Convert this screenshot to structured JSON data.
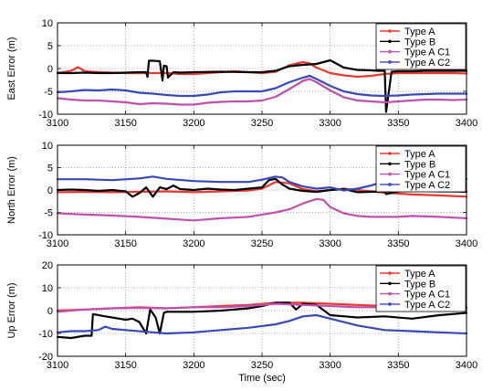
{
  "chart_data": [
    {
      "type": "line",
      "ylabel": "East Error (m)",
      "xlabel": "",
      "xlim": [
        3100,
        3400
      ],
      "ylim": [
        -10,
        10
      ],
      "xticks": [
        "3100",
        "3150",
        "3200",
        "3250",
        "3300",
        "3350",
        "3400"
      ],
      "yticks": [
        "-10",
        "-5",
        "0",
        "5",
        "10"
      ],
      "grid": "dotted",
      "legend_position": "top-right",
      "series": [
        {
          "name": "Type A",
          "color": "#e8382f",
          "x": [
            3100,
            3110,
            3115,
            3120,
            3130,
            3140,
            3150,
            3160,
            3165,
            3170,
            3180,
            3190,
            3200,
            3210,
            3220,
            3230,
            3240,
            3250,
            3260,
            3270,
            3280,
            3285,
            3290,
            3300,
            3310,
            3320,
            3330,
            3340,
            3350,
            3360,
            3370,
            3380,
            3390,
            3400
          ],
          "y": [
            -1.0,
            -0.5,
            0.3,
            -0.6,
            -0.8,
            -0.9,
            -1.0,
            -1.0,
            -1.0,
            -1.0,
            -1.0,
            -1.2,
            -1.2,
            -1.0,
            -0.8,
            -0.6,
            -0.8,
            -1.0,
            -0.7,
            0.7,
            1.4,
            1.1,
            0.2,
            -1.0,
            -1.5,
            -1.8,
            -1.6,
            -1.2,
            -1.0,
            -1.0,
            -1.0,
            -1.0,
            -1.0,
            -1.1
          ]
        },
        {
          "name": "Type B",
          "color": "#000000",
          "x": [
            3100,
            3110,
            3120,
            3130,
            3140,
            3150,
            3160,
            3165,
            3166,
            3167,
            3170,
            3175,
            3177,
            3178,
            3180,
            3181,
            3185,
            3190,
            3200,
            3220,
            3240,
            3250,
            3260,
            3270,
            3280,
            3290,
            3300,
            3310,
            3320,
            3330,
            3335,
            3340,
            3341,
            3345,
            3350,
            3360,
            3370,
            3380,
            3390,
            3400
          ],
          "y": [
            -1.0,
            -1.0,
            -0.9,
            -1.0,
            -1.0,
            -0.9,
            -0.8,
            -0.8,
            -1.8,
            1.7,
            1.7,
            1.6,
            -2.6,
            0.6,
            0.5,
            -2.0,
            -0.8,
            -0.9,
            -0.8,
            -0.7,
            -0.8,
            -0.8,
            -0.5,
            0.5,
            0.8,
            1.0,
            1.8,
            0.2,
            -0.3,
            -0.4,
            -0.5,
            -0.5,
            -9.5,
            -0.7,
            -0.6,
            -0.6,
            -0.5,
            -0.5,
            -0.5,
            -0.5
          ]
        },
        {
          "name": "Type A C1",
          "color": "#c050b0",
          "x": [
            3100,
            3110,
            3120,
            3130,
            3140,
            3150,
            3160,
            3170,
            3180,
            3190,
            3200,
            3210,
            3220,
            3230,
            3240,
            3250,
            3260,
            3270,
            3280,
            3285,
            3290,
            3300,
            3310,
            3320,
            3330,
            3340,
            3350,
            3360,
            3370,
            3380,
            3390,
            3400
          ],
          "y": [
            -6.5,
            -6.8,
            -7.0,
            -7.0,
            -7.2,
            -7.4,
            -7.8,
            -7.6,
            -7.7,
            -7.9,
            -7.9,
            -7.5,
            -7.3,
            -7.2,
            -7.2,
            -7.0,
            -6.2,
            -4.5,
            -2.7,
            -2.3,
            -3.0,
            -4.8,
            -6.3,
            -7.0,
            -7.2,
            -7.4,
            -7.2,
            -7.0,
            -6.8,
            -6.8,
            -6.9,
            -6.8
          ]
        },
        {
          "name": "Type A C2",
          "color": "#3848b8",
          "x": [
            3100,
            3110,
            3120,
            3130,
            3140,
            3150,
            3160,
            3170,
            3180,
            3190,
            3200,
            3210,
            3220,
            3230,
            3240,
            3250,
            3260,
            3270,
            3280,
            3285,
            3290,
            3300,
            3310,
            3320,
            3330,
            3340,
            3350,
            3360,
            3370,
            3380,
            3390,
            3400
          ],
          "y": [
            -5.2,
            -5.0,
            -4.7,
            -4.8,
            -4.6,
            -4.8,
            -5.3,
            -5.5,
            -5.8,
            -6.0,
            -6.0,
            -5.7,
            -5.2,
            -5.0,
            -5.0,
            -5.0,
            -4.3,
            -3.0,
            -2.0,
            -1.6,
            -2.3,
            -3.8,
            -5.0,
            -5.6,
            -5.9,
            -6.0,
            -5.9,
            -5.7,
            -5.6,
            -5.5,
            -5.5,
            -5.5
          ]
        }
      ]
    },
    {
      "type": "line",
      "ylabel": "North Error (m)",
      "xlabel": "",
      "xlim": [
        3100,
        3400
      ],
      "ylim": [
        -10,
        10
      ],
      "xticks": [
        "3100",
        "3150",
        "3200",
        "3250",
        "3300",
        "3350",
        "3400"
      ],
      "yticks": [
        "-10",
        "-5",
        "0",
        "5",
        "10"
      ],
      "grid": "dotted",
      "legend_position": "top-right",
      "series": [
        {
          "name": "Type A",
          "color": "#e8382f",
          "x": [
            3100,
            3120,
            3140,
            3160,
            3180,
            3200,
            3220,
            3240,
            3250,
            3260,
            3270,
            3280,
            3290,
            3300,
            3310,
            3320,
            3330,
            3340,
            3350,
            3360,
            3380,
            3400
          ],
          "y": [
            -0.5,
            -0.4,
            -0.5,
            -0.4,
            -0.3,
            -0.5,
            -0.3,
            -0.1,
            0.3,
            1.8,
            1.5,
            0.2,
            -0.3,
            0.0,
            0.3,
            0.0,
            -0.3,
            -0.6,
            -0.8,
            -1.0,
            -1.2,
            -1.5
          ]
        },
        {
          "name": "Type B",
          "color": "#000000",
          "x": [
            3100,
            3110,
            3120,
            3130,
            3140,
            3150,
            3155,
            3160,
            3165,
            3170,
            3175,
            3180,
            3185,
            3190,
            3200,
            3210,
            3220,
            3230,
            3240,
            3250,
            3255,
            3260,
            3265,
            3270,
            3280,
            3290,
            3300,
            3310,
            3320,
            3330,
            3340,
            3341,
            3350,
            3360,
            3370,
            3380,
            3390,
            3400
          ],
          "y": [
            0.0,
            0.1,
            0.0,
            -0.2,
            0.0,
            -0.3,
            -1.5,
            -0.7,
            0.6,
            -1.5,
            0.6,
            0.2,
            1.0,
            0.2,
            0.0,
            0.3,
            0.1,
            0.0,
            0.3,
            0.6,
            2.2,
            2.5,
            1.2,
            0.3,
            -0.2,
            -0.4,
            0.0,
            0.2,
            -0.5,
            -0.4,
            -0.3,
            -0.9,
            -0.3,
            -0.2,
            -0.2,
            -0.3,
            -0.3,
            -0.4
          ]
        },
        {
          "name": "Type A C1",
          "color": "#c050b0",
          "x": [
            3100,
            3120,
            3140,
            3160,
            3180,
            3200,
            3220,
            3240,
            3250,
            3260,
            3270,
            3280,
            3290,
            3295,
            3300,
            3310,
            3320,
            3330,
            3340,
            3350,
            3360,
            3380,
            3400
          ],
          "y": [
            -5.2,
            -5.5,
            -5.7,
            -6.0,
            -6.4,
            -6.8,
            -6.3,
            -6.0,
            -5.5,
            -5.0,
            -4.3,
            -3.0,
            -2.0,
            -2.2,
            -3.8,
            -5.2,
            -5.8,
            -6.0,
            -6.0,
            -6.0,
            -5.8,
            -6.0,
            -6.3
          ]
        },
        {
          "name": "Type A C2",
          "color": "#3848b8",
          "x": [
            3100,
            3120,
            3140,
            3160,
            3170,
            3180,
            3200,
            3220,
            3240,
            3250,
            3260,
            3265,
            3270,
            3280,
            3290,
            3300,
            3310,
            3320,
            3330,
            3340,
            3350,
            3360,
            3380,
            3400
          ],
          "y": [
            2.4,
            2.4,
            2.2,
            2.6,
            3.0,
            2.5,
            2.0,
            1.8,
            1.8,
            2.3,
            3.0,
            2.8,
            1.8,
            0.8,
            0.3,
            0.6,
            -0.1,
            0.3,
            1.0,
            2.0,
            2.3,
            2.5,
            2.7,
            2.5
          ]
        }
      ]
    },
    {
      "type": "line",
      "ylabel": "Up Error (m)",
      "xlabel": "Time (sec)",
      "xlim": [
        3100,
        3400
      ],
      "ylim": [
        -20,
        20
      ],
      "xticks": [
        "3100",
        "3150",
        "3200",
        "3250",
        "3300",
        "3350",
        "3400"
      ],
      "yticks": [
        "-20",
        "-10",
        "0",
        "10",
        "20"
      ],
      "grid": "dotted",
      "legend_position": "top-right",
      "series": [
        {
          "name": "Type A",
          "color": "#e8382f",
          "x": [
            3100,
            3120,
            3140,
            3160,
            3180,
            3200,
            3220,
            3240,
            3260,
            3280,
            3300,
            3320,
            3340,
            3360,
            3380,
            3400
          ],
          "y": [
            0.0,
            0.5,
            1.0,
            1.5,
            1.0,
            1.5,
            2.0,
            2.5,
            3.5,
            3.5,
            3.0,
            2.5,
            2.0,
            1.8,
            1.5,
            1.5
          ]
        },
        {
          "name": "Type B",
          "color": "#000000",
          "x": [
            3100,
            3110,
            3120,
            3125,
            3126,
            3135,
            3140,
            3150,
            3155,
            3160,
            3165,
            3168,
            3172,
            3175,
            3178,
            3180,
            3190,
            3200,
            3220,
            3240,
            3250,
            3260,
            3270,
            3275,
            3280,
            3290,
            3300,
            3320,
            3340,
            3360,
            3380,
            3400
          ],
          "y": [
            -11.5,
            -12.0,
            -11.0,
            -11.0,
            -1.5,
            -2.5,
            -3.0,
            -4.0,
            -3.5,
            -5.0,
            -10.0,
            0.5,
            -3.0,
            -10.0,
            -1.0,
            -0.5,
            -0.5,
            -0.5,
            0.0,
            1.0,
            2.0,
            3.5,
            3.5,
            0.5,
            3.0,
            2.5,
            -2.0,
            -3.0,
            -2.5,
            -3.5,
            -2.0,
            -1.0
          ]
        },
        {
          "name": "Type A C1",
          "color": "#c050b0",
          "x": [
            3100,
            3120,
            3140,
            3160,
            3180,
            3200,
            3220,
            3240,
            3260,
            3280,
            3300,
            3320,
            3340,
            3360,
            3380,
            3400
          ],
          "y": [
            -0.5,
            0.5,
            1.0,
            1.2,
            1.0,
            1.5,
            1.5,
            2.0,
            3.0,
            2.5,
            2.0,
            1.5,
            1.5,
            1.5,
            1.2,
            1.0
          ]
        },
        {
          "name": "Type A C2",
          "color": "#3848b8",
          "x": [
            3100,
            3110,
            3120,
            3130,
            3135,
            3140,
            3150,
            3170,
            3180,
            3200,
            3220,
            3240,
            3260,
            3270,
            3280,
            3290,
            3300,
            3320,
            3340,
            3360,
            3380,
            3400
          ],
          "y": [
            -9.5,
            -9.0,
            -9.0,
            -8.5,
            -7.0,
            -8.0,
            -8.5,
            -9.5,
            -10.0,
            -9.5,
            -8.5,
            -7.5,
            -6.0,
            -4.5,
            -2.5,
            -2.0,
            -3.5,
            -6.5,
            -8.5,
            -9.0,
            -9.5,
            -10.0
          ]
        }
      ]
    }
  ]
}
